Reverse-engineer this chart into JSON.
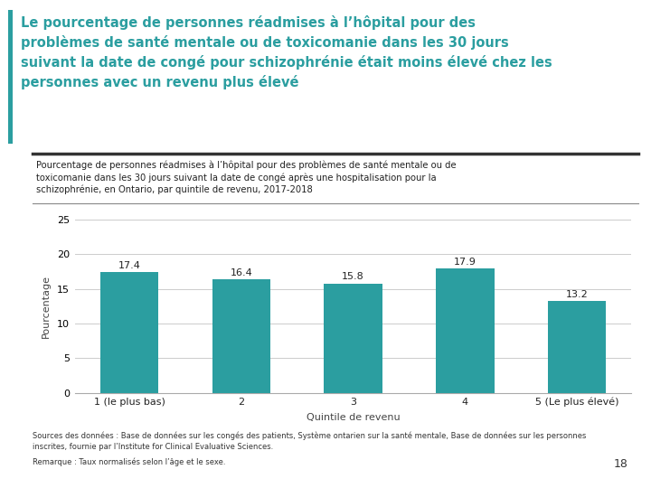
{
  "title_line1": "Le pourcentage de personnes réadmises à l’hôpital pour des",
  "title_line2": "problèmes de santé mentale ou de toxicomanie dans les 30 jours",
  "title_line3": "suivant la date de congé pour schizophrénie était moins élevé chez les",
  "title_line4": "personnes avec un revenu plus élevé",
  "title_color": "#2B9EA0",
  "accent_bar_color": "#2B9EA0",
  "subtitle_line1": "Pourcentage de personnes réadmises à l’hôpital pour des problèmes de santé mentale ou de",
  "subtitle_line2": "toxicomanie dans les 30 jours suivant la date de congé après une hospitalisation pour la",
  "subtitle_line3": "schizophrénie, en Ontario, par quintile de revenu, 2017-2018",
  "ylabel": "Pourcentage",
  "xlabel": "Quintile de revenu",
  "categories": [
    "1 (le plus bas)",
    "2",
    "3",
    "4",
    "5 (Le plus élevé)"
  ],
  "values": [
    17.4,
    16.4,
    15.8,
    17.9,
    13.2
  ],
  "bar_color": "#2B9EA0",
  "ylim": [
    0,
    25
  ],
  "yticks": [
    0,
    5,
    10,
    15,
    20,
    25
  ],
  "footnote_line1": "Sources des données : Base de données sur les congés des patients, Système ontarien sur la santé mentale, Base de données sur les personnes",
  "footnote_line2": "inscrites, fournie par l’Institute for Clinical Evaluative Sciences.",
  "footnote_line3": "Remarque : Taux normalisés selon l’âge et le sexe.",
  "page_number": "18",
  "background_color": "#FFFFFF",
  "separator_color": "#333333",
  "separator2_color": "#888888"
}
